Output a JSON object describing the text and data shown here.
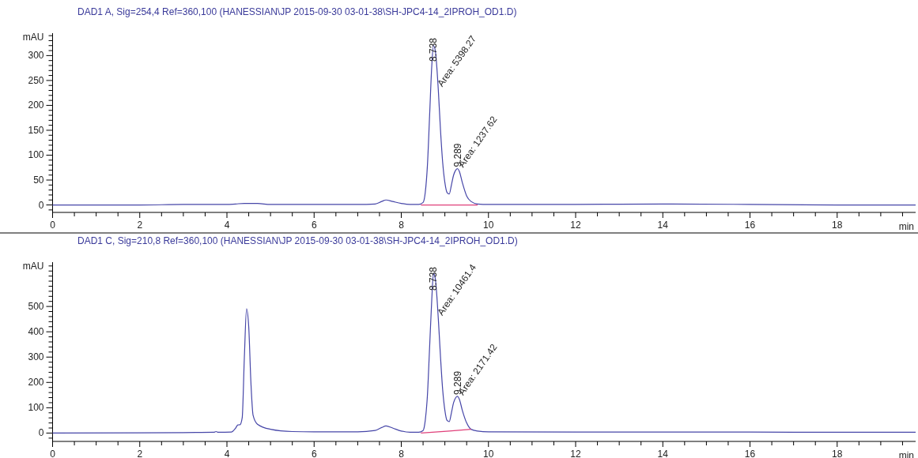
{
  "chart_data": [
    {
      "type": "line",
      "title": "DAD1 A, Sig=254,4 Ref=360,100 (HANESSIAN\\JP 2015-09-30 03-01-38\\SH-JPC4-14_2IPROH_OD1.D)",
      "xlabel": "min",
      "ylabel": "mAU",
      "grid": false,
      "marker": "none",
      "xlim": [
        0,
        19.8
      ],
      "ylim": [
        -15,
        345
      ],
      "xticks": [
        0,
        {
          "value": 0.5,
          "label": null
        },
        {
          "value": 1,
          "label": null
        },
        {
          "value": 1.5,
          "label": null
        },
        2,
        {
          "value": 2.5,
          "label": null
        },
        {
          "value": 3,
          "label": null
        },
        {
          "value": 3.5,
          "label": null
        },
        4,
        {
          "value": 4.5,
          "label": null
        },
        {
          "value": 5,
          "label": null
        },
        {
          "value": 5.5,
          "label": null
        },
        6,
        {
          "value": 6.5,
          "label": null
        },
        {
          "value": 7,
          "label": null
        },
        {
          "value": 7.5,
          "label": null
        },
        8,
        {
          "value": 8.5,
          "label": null
        },
        {
          "value": 9,
          "label": null
        },
        {
          "value": 9.5,
          "label": null
        },
        10,
        {
          "value": 10.5,
          "label": null
        },
        {
          "value": 11,
          "label": null
        },
        {
          "value": 11.5,
          "label": null
        },
        12,
        {
          "value": 12.5,
          "label": null
        },
        {
          "value": 13,
          "label": null
        },
        {
          "value": 13.5,
          "label": null
        },
        14,
        {
          "value": 14.5,
          "label": null
        },
        {
          "value": 15,
          "label": null
        },
        {
          "value": 15.5,
          "label": null
        },
        16,
        {
          "value": 16.5,
          "label": null
        },
        {
          "value": 17,
          "label": null
        },
        {
          "value": 17.5,
          "label": null
        },
        18,
        {
          "value": 18.5,
          "label": null
        },
        {
          "value": 19,
          "label": null
        },
        {
          "value": 19.5,
          "label": null
        }
      ],
      "yticks": [
        {
          "value": -10,
          "label": null
        },
        0,
        {
          "value": 10,
          "label": null
        },
        {
          "value": 20,
          "label": null
        },
        {
          "value": 30,
          "label": null
        },
        {
          "value": 40,
          "label": null
        },
        50,
        {
          "value": 60,
          "label": null
        },
        {
          "value": 70,
          "label": null
        },
        {
          "value": 80,
          "label": null
        },
        {
          "value": 90,
          "label": null
        },
        100,
        {
          "value": 110,
          "label": null
        },
        {
          "value": 120,
          "label": null
        },
        {
          "value": 130,
          "label": null
        },
        {
          "value": 140,
          "label": null
        },
        150,
        {
          "value": 160,
          "label": null
        },
        {
          "value": 170,
          "label": null
        },
        {
          "value": 180,
          "label": null
        },
        {
          "value": 190,
          "label": null
        },
        200,
        {
          "value": 210,
          "label": null
        },
        {
          "value": 220,
          "label": null
        },
        {
          "value": 230,
          "label": null
        },
        {
          "value": 240,
          "label": null
        },
        250,
        {
          "value": 260,
          "label": null
        },
        {
          "value": 270,
          "label": null
        },
        {
          "value": 280,
          "label": null
        },
        {
          "value": 290,
          "label": null
        },
        300,
        {
          "value": 310,
          "label": null
        },
        {
          "value": 320,
          "label": null
        },
        {
          "value": 330,
          "label": null
        },
        {
          "value": 340,
          "label": null
        }
      ],
      "series": [
        {
          "color": "#4646a8",
          "x": [
            0,
            1,
            2,
            3,
            4,
            4.2,
            4.4,
            4.7,
            5,
            6,
            7,
            7.4,
            7.55,
            7.65,
            7.8,
            8.0,
            8.2,
            8.4,
            8.5,
            8.55,
            8.6,
            8.65,
            8.7,
            8.738,
            8.78,
            8.85,
            8.9,
            8.95,
            9.0,
            9.05,
            9.1,
            9.15,
            9.2,
            9.25,
            9.289,
            9.33,
            9.4,
            9.5,
            9.6,
            9.75,
            10,
            12,
            14,
            16,
            18,
            19.8
          ],
          "values": [
            0,
            0,
            0,
            1,
            1,
            2,
            3,
            3,
            1,
            1,
            1,
            2,
            7,
            10,
            7,
            3,
            1,
            1,
            5,
            25,
            80,
            180,
            280,
            320,
            310,
            230,
            150,
            85,
            45,
            25,
            22,
            40,
            60,
            70,
            73,
            68,
            45,
            18,
            7,
            2,
            1,
            1,
            2,
            1,
            0,
            0
          ]
        },
        {
          "color": "#e0407a",
          "x": [
            8.45,
            9.1,
            9.75
          ],
          "values": [
            0,
            0,
            0
          ]
        }
      ],
      "annotations": [
        {
          "text": "8.738",
          "x": 8.738,
          "y": 320
        },
        {
          "text": "Area: 5398.27",
          "x": 8.85,
          "y": 230
        },
        {
          "text": "9.289",
          "x": 9.289,
          "y": 73
        },
        {
          "text": "Area: 1237.62",
          "x": 9.33,
          "y": 68
        }
      ]
    },
    {
      "type": "line",
      "title": "DAD1 C, Sig=210,8 Ref=360,100 (HANESSIAN\\JP 2015-09-30 03-01-38\\SH-JPC4-14_2IPROH_OD1.D)",
      "xlabel": "min",
      "ylabel": "mAU",
      "grid": false,
      "marker": "none",
      "xlim": [
        0,
        19.8
      ],
      "ylim": [
        -33,
        675
      ],
      "xticks": [
        0,
        {
          "value": 0.5,
          "label": null
        },
        {
          "value": 1,
          "label": null
        },
        {
          "value": 1.5,
          "label": null
        },
        2,
        {
          "value": 2.5,
          "label": null
        },
        {
          "value": 3,
          "label": null
        },
        {
          "value": 3.5,
          "label": null
        },
        4,
        {
          "value": 4.5,
          "label": null
        },
        {
          "value": 5,
          "label": null
        },
        {
          "value": 5.5,
          "label": null
        },
        6,
        {
          "value": 6.5,
          "label": null
        },
        {
          "value": 7,
          "label": null
        },
        {
          "value": 7.5,
          "label": null
        },
        8,
        {
          "value": 8.5,
          "label": null
        },
        {
          "value": 9,
          "label": null
        },
        {
          "value": 9.5,
          "label": null
        },
        10,
        {
          "value": 10.5,
          "label": null
        },
        {
          "value": 11,
          "label": null
        },
        {
          "value": 11.5,
          "label": null
        },
        12,
        {
          "value": 12.5,
          "label": null
        },
        {
          "value": 13,
          "label": null
        },
        {
          "value": 13.5,
          "label": null
        },
        14,
        {
          "value": 14.5,
          "label": null
        },
        {
          "value": 15,
          "label": null
        },
        {
          "value": 15.5,
          "label": null
        },
        16,
        {
          "value": 16.5,
          "label": null
        },
        {
          "value": 17,
          "label": null
        },
        {
          "value": 17.5,
          "label": null
        },
        18,
        {
          "value": 18.5,
          "label": null
        },
        {
          "value": 19,
          "label": null
        },
        {
          "value": 19.5,
          "label": null
        }
      ],
      "yticks": [
        {
          "value": -20,
          "label": null
        },
        0,
        {
          "value": 20,
          "label": null
        },
        {
          "value": 40,
          "label": null
        },
        {
          "value": 60,
          "label": null
        },
        {
          "value": 80,
          "label": null
        },
        100,
        {
          "value": 120,
          "label": null
        },
        {
          "value": 140,
          "label": null
        },
        {
          "value": 160,
          "label": null
        },
        {
          "value": 180,
          "label": null
        },
        200,
        {
          "value": 220,
          "label": null
        },
        {
          "value": 240,
          "label": null
        },
        {
          "value": 260,
          "label": null
        },
        {
          "value": 280,
          "label": null
        },
        300,
        {
          "value": 320,
          "label": null
        },
        {
          "value": 340,
          "label": null
        },
        {
          "value": 360,
          "label": null
        },
        {
          "value": 380,
          "label": null
        },
        400,
        {
          "value": 420,
          "label": null
        },
        {
          "value": 440,
          "label": null
        },
        {
          "value": 460,
          "label": null
        },
        {
          "value": 480,
          "label": null
        },
        500,
        {
          "value": 520,
          "label": null
        },
        {
          "value": 540,
          "label": null
        },
        {
          "value": 560,
          "label": null
        },
        {
          "value": 580,
          "label": null
        },
        {
          "value": 600,
          "label": null
        },
        {
          "value": 620,
          "label": null
        },
        {
          "value": 640,
          "label": null
        },
        {
          "value": 660,
          "label": null
        }
      ],
      "series": [
        {
          "color": "#4646a8",
          "x": [
            0,
            2,
            3,
            3.7,
            3.75,
            3.8,
            4.1,
            4.2,
            4.25,
            4.3,
            4.35,
            4.4,
            4.45,
            4.5,
            4.55,
            4.6,
            4.7,
            5,
            5.5,
            6,
            7,
            7.4,
            7.55,
            7.65,
            7.8,
            8,
            8.2,
            8.4,
            8.5,
            8.55,
            8.6,
            8.65,
            8.7,
            8.738,
            8.78,
            8.85,
            8.9,
            8.95,
            9.0,
            9.05,
            9.1,
            9.15,
            9.2,
            9.25,
            9.289,
            9.33,
            9.4,
            9.5,
            9.6,
            9.75,
            10,
            12,
            14,
            16,
            18,
            19.8
          ],
          "values": [
            0,
            1,
            2,
            3,
            6,
            3,
            4,
            20,
            32,
            33,
            60,
            300,
            491,
            420,
            200,
            70,
            35,
            15,
            6,
            5,
            5,
            10,
            22,
            28,
            20,
            8,
            3,
            3,
            10,
            50,
            150,
            340,
            530,
            631,
            610,
            450,
            300,
            170,
            90,
            50,
            45,
            80,
            120,
            140,
            145,
            135,
            90,
            40,
            15,
            8,
            5,
            4,
            4,
            4,
            3,
            3
          ]
        },
        {
          "color": "#e0407a",
          "x": [
            8.45,
            9.1,
            9.6
          ],
          "values": [
            0,
            8,
            15
          ]
        }
      ],
      "annotations": [
        {
          "text": "8.738",
          "x": 8.738,
          "y": 631
        },
        {
          "text": "Area: 10461.4",
          "x": 8.85,
          "y": 450
        },
        {
          "text": "9.289",
          "x": 9.289,
          "y": 145
        },
        {
          "text": "Area: 2171.42",
          "x": 9.33,
          "y": 135
        }
      ]
    }
  ]
}
